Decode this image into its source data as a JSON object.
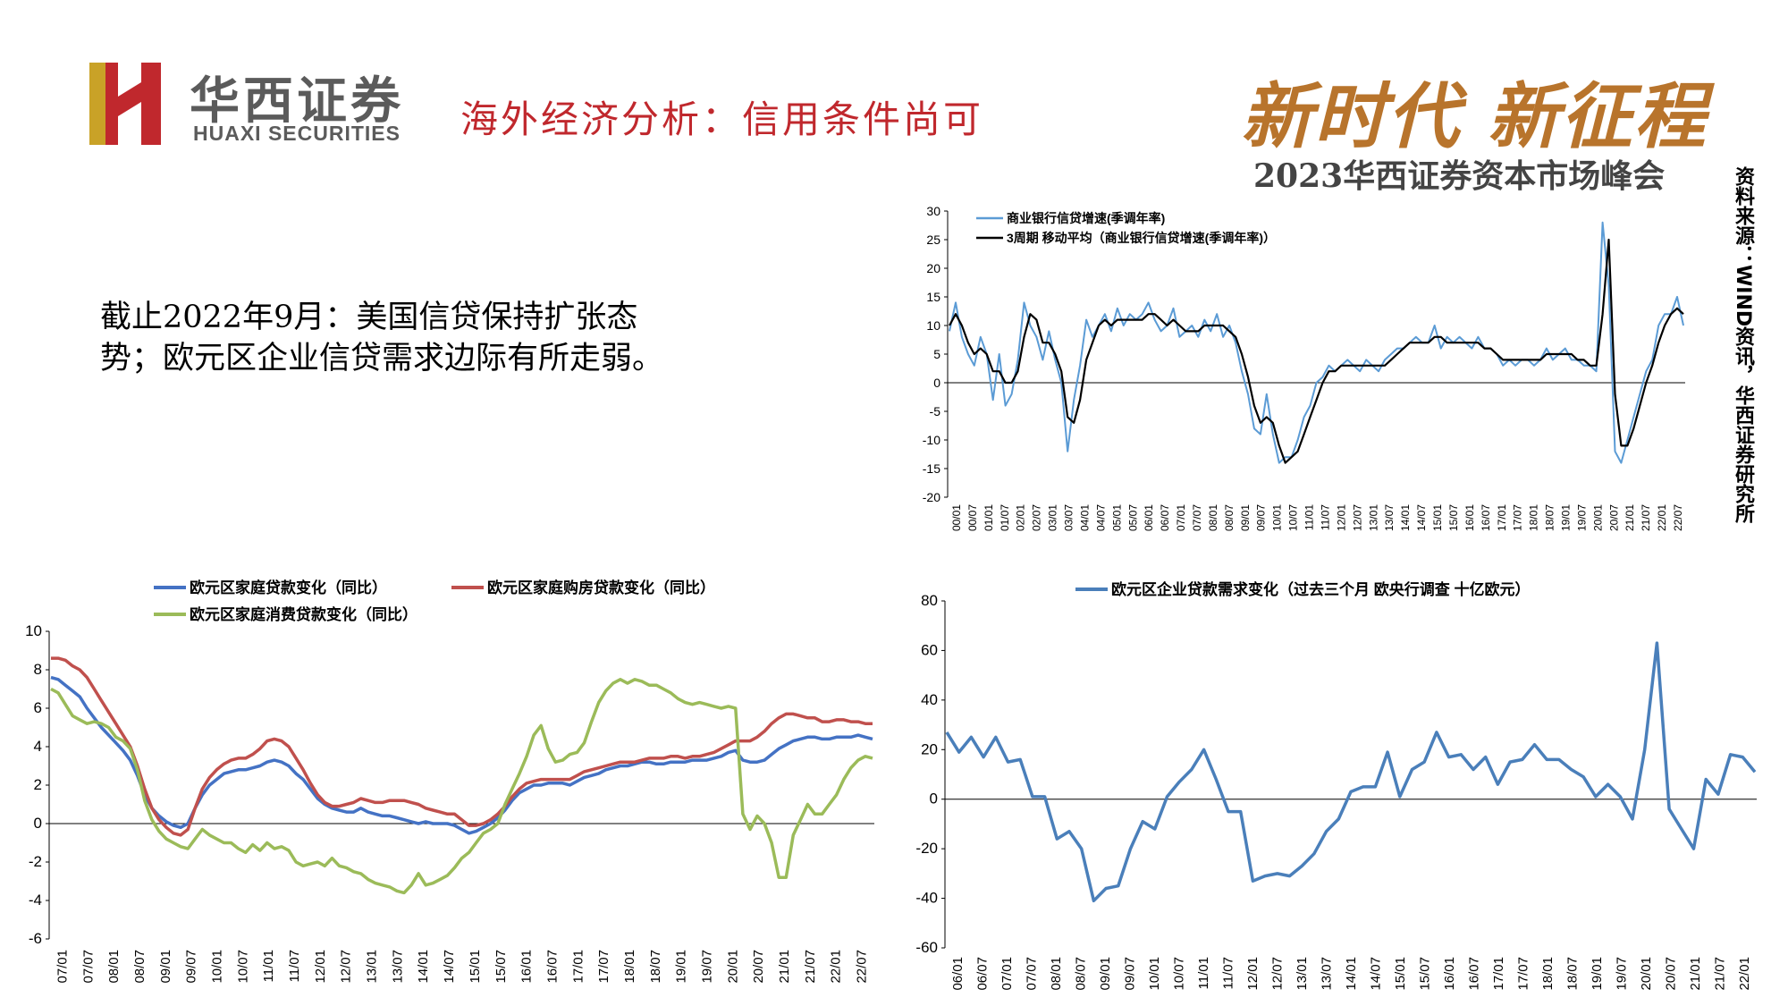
{
  "header": {
    "brand_cn": "华西证券",
    "brand_en": "HUAXI SECURITIES",
    "title": "海外经济分析：信用条件尚可",
    "slogan": "新时代 新征程",
    "summit": "2023华西证券资本市场峰会"
  },
  "summary": {
    "line1": "截止2022年9月：美国信贷保持扩张态",
    "line2": "势；欧元区企业信贷需求边际有所走弱。"
  },
  "source_note": "资料来源：WIND资讯，华西证券研究所",
  "colors": {
    "brand_red": "#c0282d",
    "gold": "#b8742c",
    "us_series_raw": "#5b9bd5",
    "us_series_ma": "#000000",
    "hh_total": "#4472c4",
    "hh_mortgage": "#c0504d",
    "hh_consumer": "#9bbb59",
    "corp": "#4a7fba"
  },
  "chart_data": [
    {
      "id": "us-credit",
      "type": "line",
      "title": "",
      "ylim": [
        -20,
        30
      ],
      "yticks": [
        -20,
        -15,
        -10,
        -5,
        0,
        5,
        10,
        15,
        20,
        25,
        30
      ],
      "x_tick_labels": [
        "00/01",
        "00/07",
        "01/01",
        "01/07",
        "02/01",
        "02/07",
        "03/01",
        "03/07",
        "04/01",
        "04/07",
        "05/01",
        "05/07",
        "06/01",
        "06/07",
        "07/01",
        "07/07",
        "08/01",
        "08/07",
        "09/01",
        "09/07",
        "10/01",
        "10/07",
        "11/01",
        "11/07",
        "12/01",
        "12/07",
        "13/01",
        "13/07",
        "14/01",
        "14/07",
        "15/01",
        "15/07",
        "16/01",
        "16/07",
        "17/01",
        "17/07",
        "18/01",
        "18/07",
        "19/01",
        "19/07",
        "20/01",
        "20/07",
        "21/01",
        "21/07",
        "22/01",
        "22/07"
      ],
      "legend_position": "top-left",
      "series": [
        {
          "name": "商业银行信贷增速(季调年率)",
          "color": "#5b9bd5",
          "values": [
            9,
            14,
            8,
            5,
            3,
            8,
            5,
            -3,
            5,
            -4,
            -2,
            4,
            14,
            10,
            8,
            4,
            9,
            4,
            0,
            -12,
            -3,
            3,
            11,
            8,
            10,
            12,
            9,
            13,
            10,
            12,
            11,
            12,
            14,
            11,
            9,
            10,
            13,
            8,
            9,
            10,
            8,
            11,
            9,
            12,
            8,
            10,
            7,
            2,
            -2,
            -8,
            -9,
            -2,
            -9,
            -14,
            -13,
            -13,
            -10,
            -6,
            -4,
            0,
            1,
            3,
            2,
            3,
            4,
            3,
            2,
            4,
            3,
            2,
            4,
            5,
            6,
            6,
            7,
            8,
            7,
            7,
            10,
            6,
            8,
            7,
            8,
            7,
            6,
            8,
            6,
            6,
            5,
            3,
            4,
            3,
            4,
            4,
            3,
            4,
            6,
            4,
            5,
            6,
            4,
            4,
            3,
            3,
            2,
            28,
            17,
            -12,
            -14,
            -10,
            -6,
            -2,
            2,
            4,
            10,
            12,
            12,
            15,
            10
          ]
        },
        {
          "name": "3周期 移动平均（商业银行信贷增速(季调年率)）",
          "color": "#000000",
          "values": [
            10,
            12,
            10,
            7,
            5,
            6,
            5,
            2,
            2,
            0,
            0,
            2,
            8,
            12,
            11,
            7,
            7,
            5,
            2,
            -6,
            -7,
            -3,
            4,
            7,
            10,
            11,
            10,
            11,
            11,
            11,
            11,
            11,
            12,
            12,
            11,
            10,
            11,
            10,
            9,
            9,
            9,
            10,
            10,
            10,
            10,
            9,
            8,
            5,
            1,
            -4,
            -7,
            -6,
            -7,
            -11,
            -14,
            -13,
            -12,
            -9,
            -6,
            -3,
            0,
            2,
            2,
            3,
            3,
            3,
            3,
            3,
            3,
            3,
            3,
            4,
            5,
            6,
            7,
            7,
            7,
            7,
            8,
            8,
            7,
            7,
            7,
            7,
            7,
            7,
            6,
            6,
            5,
            4,
            4,
            4,
            4,
            4,
            4,
            4,
            5,
            5,
            5,
            5,
            5,
            4,
            4,
            3,
            3,
            12,
            25,
            -2,
            -11,
            -11,
            -8,
            -4,
            0,
            3,
            7,
            10,
            12,
            13,
            12
          ]
        }
      ]
    },
    {
      "id": "eurozone-household",
      "type": "line",
      "title": "",
      "ylim": [
        -6,
        10
      ],
      "yticks": [
        -6,
        -4,
        -2,
        0,
        2,
        4,
        6,
        8,
        10
      ],
      "x_tick_labels": [
        "07/01",
        "07/07",
        "08/01",
        "08/07",
        "09/01",
        "09/07",
        "10/01",
        "10/07",
        "11/01",
        "11/07",
        "12/01",
        "12/07",
        "13/01",
        "13/07",
        "14/01",
        "14/07",
        "15/01",
        "15/07",
        "16/01",
        "16/07",
        "17/01",
        "17/07",
        "18/01",
        "18/07",
        "19/01",
        "19/07",
        "20/01",
        "20/07",
        "21/01",
        "21/07",
        "22/01",
        "22/07"
      ],
      "legend_position": "top",
      "series": [
        {
          "name": "欧元区家庭贷款变化（同比）",
          "color": "#4472c4",
          "values": [
            7.6,
            7.5,
            7.2,
            6.9,
            6.6,
            6.0,
            5.5,
            5.0,
            4.6,
            4.2,
            3.8,
            3.3,
            2.5,
            1.5,
            0.8,
            0.4,
            0.1,
            -0.1,
            -0.2,
            0.0,
            0.8,
            1.5,
            2.0,
            2.3,
            2.6,
            2.7,
            2.8,
            2.8,
            2.9,
            3.0,
            3.2,
            3.3,
            3.2,
            3.0,
            2.6,
            2.3,
            1.8,
            1.3,
            1.0,
            0.8,
            0.7,
            0.6,
            0.6,
            0.8,
            0.6,
            0.5,
            0.4,
            0.4,
            0.3,
            0.2,
            0.1,
            0.0,
            0.1,
            0.0,
            0.0,
            0.0,
            -0.1,
            -0.3,
            -0.5,
            -0.4,
            -0.2,
            0.0,
            0.3,
            0.7,
            1.2,
            1.6,
            1.8,
            2.0,
            2.0,
            2.1,
            2.1,
            2.1,
            2.0,
            2.2,
            2.4,
            2.5,
            2.6,
            2.8,
            2.9,
            3.0,
            3.0,
            3.1,
            3.2,
            3.2,
            3.1,
            3.1,
            3.2,
            3.2,
            3.2,
            3.3,
            3.3,
            3.3,
            3.4,
            3.5,
            3.7,
            3.8,
            3.3,
            3.2,
            3.2,
            3.3,
            3.6,
            3.9,
            4.1,
            4.3,
            4.4,
            4.5,
            4.5,
            4.4,
            4.4,
            4.5,
            4.5,
            4.5,
            4.6,
            4.5,
            4.4
          ]
        },
        {
          "name": "欧元区家庭购房贷款变化（同比）",
          "color": "#c0504d",
          "values": [
            8.6,
            8.6,
            8.5,
            8.2,
            8.0,
            7.6,
            7.0,
            6.4,
            5.8,
            5.2,
            4.6,
            4.0,
            3.0,
            1.8,
            0.8,
            0.2,
            -0.2,
            -0.5,
            -0.6,
            -0.3,
            0.8,
            1.8,
            2.4,
            2.8,
            3.1,
            3.3,
            3.4,
            3.4,
            3.6,
            3.9,
            4.3,
            4.4,
            4.3,
            4.0,
            3.4,
            2.8,
            2.1,
            1.5,
            1.1,
            0.9,
            0.9,
            1.0,
            1.1,
            1.3,
            1.2,
            1.1,
            1.1,
            1.2,
            1.2,
            1.2,
            1.1,
            1.0,
            0.8,
            0.7,
            0.6,
            0.5,
            0.5,
            0.2,
            -0.1,
            -0.1,
            0.0,
            0.2,
            0.5,
            0.9,
            1.4,
            1.8,
            2.1,
            2.2,
            2.3,
            2.3,
            2.3,
            2.3,
            2.3,
            2.5,
            2.7,
            2.8,
            2.9,
            3.0,
            3.1,
            3.2,
            3.2,
            3.2,
            3.3,
            3.4,
            3.4,
            3.4,
            3.5,
            3.5,
            3.4,
            3.5,
            3.5,
            3.6,
            3.7,
            3.9,
            4.1,
            4.3,
            4.3,
            4.3,
            4.5,
            4.8,
            5.2,
            5.5,
            5.7,
            5.7,
            5.6,
            5.5,
            5.5,
            5.3,
            5.3,
            5.4,
            5.4,
            5.3,
            5.3,
            5.2,
            5.2
          ]
        },
        {
          "name": "欧元区家庭消费贷款变化（同比）",
          "color": "#9bbb59",
          "values": [
            7.0,
            6.8,
            6.2,
            5.6,
            5.4,
            5.2,
            5.3,
            5.2,
            5.0,
            4.5,
            4.3,
            3.9,
            2.8,
            1.2,
            0.2,
            -0.4,
            -0.8,
            -1.0,
            -1.2,
            -1.3,
            -0.8,
            -0.3,
            -0.6,
            -0.8,
            -1.0,
            -1.0,
            -1.3,
            -1.5,
            -1.1,
            -1.4,
            -1.0,
            -1.3,
            -1.2,
            -1.4,
            -2.0,
            -2.2,
            -2.1,
            -2.0,
            -2.2,
            -1.8,
            -2.2,
            -2.3,
            -2.5,
            -2.6,
            -2.9,
            -3.1,
            -3.2,
            -3.3,
            -3.5,
            -3.6,
            -3.2,
            -2.6,
            -3.2,
            -3.1,
            -2.9,
            -2.7,
            -2.3,
            -1.8,
            -1.5,
            -1.0,
            -0.5,
            -0.3,
            0.0,
            1.0,
            1.8,
            2.6,
            3.5,
            4.6,
            5.1,
            3.9,
            3.2,
            3.3,
            3.6,
            3.7,
            4.2,
            5.3,
            6.3,
            6.9,
            7.3,
            7.5,
            7.3,
            7.5,
            7.4,
            7.2,
            7.2,
            7.0,
            6.8,
            6.5,
            6.3,
            6.2,
            6.3,
            6.2,
            6.1,
            6.0,
            6.1,
            6.0,
            0.5,
            -0.3,
            0.4,
            0.0,
            -1.0,
            -2.8,
            -2.8,
            -0.6,
            0.2,
            1.0,
            0.5,
            0.5,
            1.0,
            1.5,
            2.3,
            2.9,
            3.3,
            3.5,
            3.4
          ]
        }
      ]
    },
    {
      "id": "eurozone-corporate",
      "type": "line",
      "title": "",
      "ylim": [
        -60,
        80
      ],
      "yticks": [
        -60,
        -40,
        -20,
        0,
        20,
        40,
        60,
        80
      ],
      "x_tick_labels": [
        "06/01",
        "06/07",
        "07/01",
        "07/07",
        "08/01",
        "08/07",
        "09/01",
        "09/07",
        "10/01",
        "10/07",
        "11/01",
        "11/07",
        "12/01",
        "12/07",
        "13/01",
        "13/07",
        "14/01",
        "14/07",
        "15/01",
        "15/07",
        "16/01",
        "16/07",
        "17/01",
        "17/07",
        "18/01",
        "18/07",
        "19/01",
        "19/07",
        "20/01",
        "20/07",
        "21/01",
        "21/07",
        "22/01"
      ],
      "legend_position": "top",
      "series": [
        {
          "name": "欧元区企业贷款需求变化（过去三个月 欧央行调查 十亿欧元）",
          "color": "#4a7fba",
          "values": [
            27,
            19,
            25,
            17,
            25,
            15,
            16,
            1,
            1,
            -16,
            -13,
            -20,
            -41,
            -36,
            -35,
            -20,
            -9,
            -12,
            1,
            7,
            12,
            20,
            8,
            -5,
            -5,
            -33,
            -31,
            -30,
            -31,
            -27,
            -22,
            -13,
            -8,
            3,
            5,
            5,
            19,
            1,
            12,
            15,
            27,
            17,
            18,
            12,
            17,
            6,
            15,
            16,
            22,
            16,
            16,
            12,
            9,
            1,
            6,
            1,
            -8,
            20,
            63,
            -4,
            -12,
            -20,
            8,
            2,
            18,
            17,
            11
          ]
        }
      ]
    }
  ]
}
